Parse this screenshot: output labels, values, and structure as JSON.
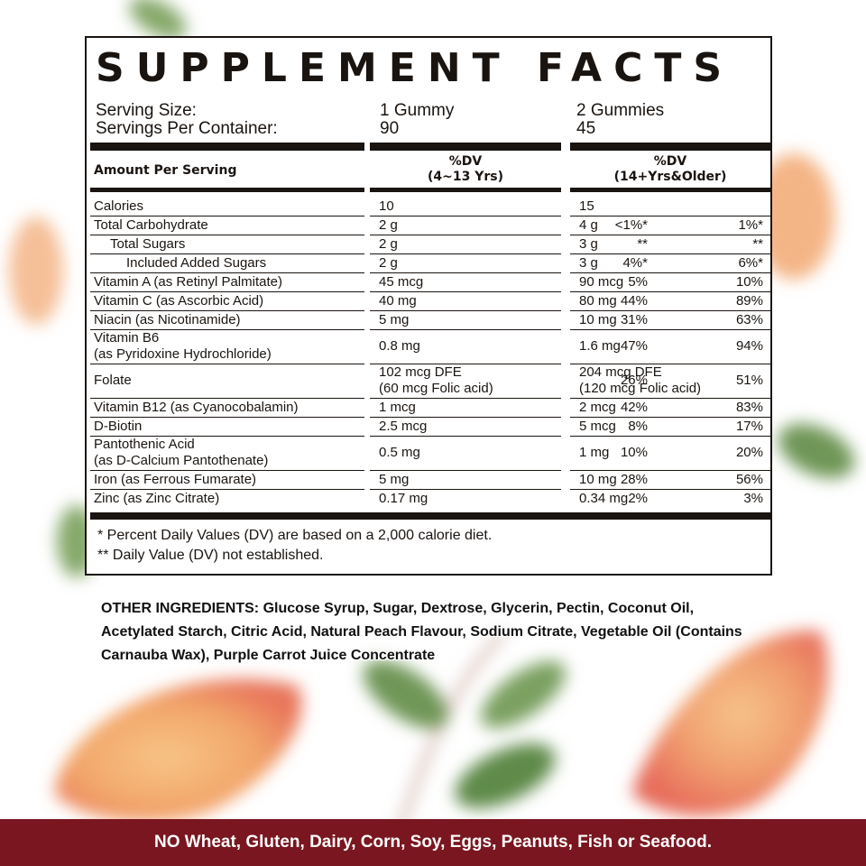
{
  "colors": {
    "banner_bg": "#7a1620",
    "ink": "#1a1410",
    "background": "#ffffff"
  },
  "title": "SUPPLEMENT FACTS",
  "serving": {
    "size_label": "Serving Size:",
    "per_container_label": "Servings Per Container:",
    "size_child": "1 Gummy",
    "size_adult": "2 Gummies",
    "per_container_child": "90",
    "per_container_adult": "45"
  },
  "header": {
    "amount_label": "Amount Per Serving",
    "child_dv": "%DV",
    "child_age": "(4~13 Yrs)",
    "adult_dv": "%DV",
    "adult_age": "(14+Yrs&Older)"
  },
  "rows": [
    {
      "name": [
        "Calories"
      ],
      "child_amt": [
        "10"
      ],
      "child_pct": "",
      "adult_amt": [
        "15"
      ],
      "adult_pct": ""
    },
    {
      "name": [
        "Total Carbohydrate"
      ],
      "child_amt": [
        "2 g"
      ],
      "child_pct": "<1%*",
      "adult_amt": [
        "4 g"
      ],
      "adult_pct": "1%*"
    },
    {
      "name": [
        "Total Sugars"
      ],
      "indent": 1,
      "child_amt": [
        "2 g"
      ],
      "child_pct": "**",
      "adult_amt": [
        "3 g"
      ],
      "adult_pct": "**"
    },
    {
      "name": [
        "Included Added Sugars"
      ],
      "indent": 2,
      "child_amt": [
        "2 g"
      ],
      "child_pct": "4%*",
      "adult_amt": [
        "3 g"
      ],
      "adult_pct": "6%*"
    },
    {
      "name": [
        "Vitamin A (as Retinyl Palmitate)"
      ],
      "child_amt": [
        "45 mcg"
      ],
      "child_pct": "5%",
      "adult_amt": [
        "90 mcg"
      ],
      "adult_pct": "10%"
    },
    {
      "name": [
        "Vitamin C (as Ascorbic Acid)"
      ],
      "child_amt": [
        "40 mg"
      ],
      "child_pct": "44%",
      "adult_amt": [
        "80 mg"
      ],
      "adult_pct": "89%"
    },
    {
      "name": [
        "Niacin (as Nicotinamide)"
      ],
      "child_amt": [
        "5 mg"
      ],
      "child_pct": "31%",
      "adult_amt": [
        "10 mg"
      ],
      "adult_pct": "63%"
    },
    {
      "name": [
        "Vitamin B6",
        "(as Pyridoxine Hydrochloride)"
      ],
      "child_amt": [
        "0.8 mg"
      ],
      "child_pct": "47%",
      "adult_amt": [
        "1.6 mg"
      ],
      "adult_pct": "94%"
    },
    {
      "name": [
        "Folate"
      ],
      "child_amt": [
        "102 mcg DFE",
        "(60 mcg Folic acid)"
      ],
      "child_pct": "26%",
      "adult_amt": [
        "204 mcg DFE",
        "(120 mcg Folic acid)"
      ],
      "adult_pct": "51%"
    },
    {
      "name": [
        "Vitamin B12 (as Cyanocobalamin)"
      ],
      "child_amt": [
        "1 mcg"
      ],
      "child_pct": "42%",
      "adult_amt": [
        "2 mcg"
      ],
      "adult_pct": "83%"
    },
    {
      "name": [
        "D-Biotin"
      ],
      "child_amt": [
        "2.5 mcg"
      ],
      "child_pct": "8%",
      "adult_amt": [
        "5 mcg"
      ],
      "adult_pct": "17%"
    },
    {
      "name": [
        "Pantothenic Acid",
        "(as D-Calcium Pantothenate)"
      ],
      "child_amt": [
        "0.5 mg"
      ],
      "child_pct": "10%",
      "adult_amt": [
        "1 mg"
      ],
      "adult_pct": "20%"
    },
    {
      "name": [
        "Iron  (as Ferrous Fumarate)"
      ],
      "child_amt": [
        "5 mg"
      ],
      "child_pct": "28%",
      "adult_amt": [
        "10 mg"
      ],
      "adult_pct": "56%"
    },
    {
      "name": [
        "Zinc (as Zinc Citrate)"
      ],
      "child_amt": [
        "0.17 mg"
      ],
      "child_pct": "2%",
      "adult_amt": [
        "0.34 mg"
      ],
      "adult_pct": "3%"
    }
  ],
  "footnotes": [
    "* Percent Daily Values (DV) are based on a 2,000 calorie diet.",
    "** Daily Value (DV) not established."
  ],
  "ingredients": {
    "label": "OTHER INGREDIENTS:",
    "text": " Glucose Syrup, Sugar, Dextrose, Glycerin, Pectin, Coconut Oil, Acetylated Starch, Citric Acid, Natural Peach Flavour, Sodium Citrate, Vegetable Oil (Contains Carnauba Wax), Purple Carrot Juice Concentrate"
  },
  "banner": "NO Wheat, Gluten, Dairy, Corn, Soy, Eggs, Peanuts, Fish or Seafood."
}
